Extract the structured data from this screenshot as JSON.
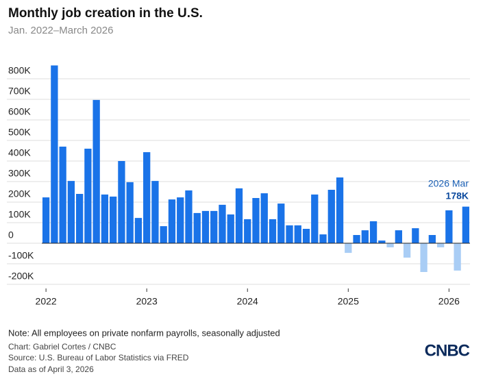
{
  "chart_data": {
    "type": "bar",
    "title": "Monthly job creation in the U.S.",
    "subtitle": "Jan. 2022–March 2026",
    "categories": [
      "2022",
      null,
      null,
      null,
      null,
      null,
      null,
      null,
      null,
      null,
      null,
      null,
      "2023",
      null,
      null,
      null,
      null,
      null,
      null,
      null,
      null,
      null,
      null,
      null,
      "2024",
      null,
      null,
      null,
      null,
      null,
      null,
      null,
      null,
      null,
      null,
      null,
      "2025",
      null,
      null,
      null,
      null,
      null,
      null,
      null,
      null,
      null,
      null,
      null,
      "2026",
      null,
      null
    ],
    "values": [
      223,
      865,
      470,
      303,
      240,
      460,
      697,
      237,
      227,
      400,
      297,
      123,
      443,
      303,
      83,
      213,
      223,
      257,
      147,
      157,
      157,
      187,
      140,
      267,
      117,
      220,
      243,
      117,
      193,
      87,
      87,
      70,
      237,
      43,
      260,
      320,
      -47,
      40,
      63,
      107,
      13,
      -20,
      63,
      -70,
      73,
      -140,
      40,
      -20,
      160,
      -133,
      178
    ],
    "positive_color": "#1a73e8",
    "negative_color": "#a9cdf5",
    "ylim": [
      -220,
      880
    ],
    "yticks": [
      {
        "value": -200,
        "label": "-200K"
      },
      {
        "value": -100,
        "label": "-100K"
      },
      0,
      {
        "value": 100,
        "label": "100K"
      },
      {
        "value": 200,
        "label": "200K"
      },
      {
        "value": 300,
        "label": "300K"
      },
      {
        "value": 400,
        "label": "400K"
      },
      {
        "value": 500,
        "label": "500K"
      },
      {
        "value": 600,
        "label": "600K"
      },
      {
        "value": 700,
        "label": "700K"
      },
      {
        "value": 800,
        "label": "800K"
      }
    ],
    "grid": true,
    "annotation": {
      "text": "2026 Mar",
      "value_label": "178K"
    },
    "notes": [
      "Note: All employees on private nonfarm payrolls, seasonally adjusted",
      "Chart: Gabriel Cortes / CNBC",
      "Source: U.S. Bureau of Labor Statistics via FRED",
      "Data as of April 3, 2026"
    ],
    "logo": "CNBC"
  }
}
